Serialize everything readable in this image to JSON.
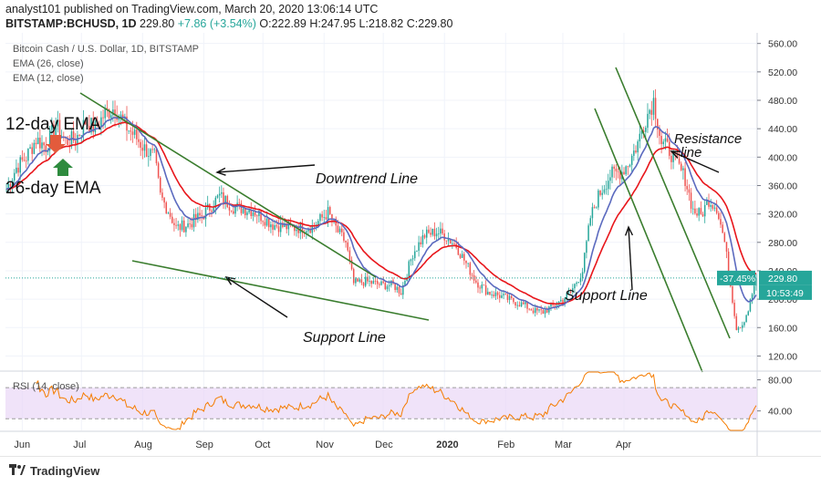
{
  "header": {
    "publish_line": "analyst101 published on TradingView.com, March 20, 2020 13:06:14 UTC",
    "symbol": "BITSTAMP:BCHUSD, 1D",
    "close_value": "229.80",
    "change": "+7.86 (+3.54%)",
    "open": "O:222.89",
    "high": "H:247.95",
    "low": "L:218.82",
    "close": "C:229.80"
  },
  "legend": {
    "title": "Bitcoin Cash / U.S. Dollar, 1D, BITSTAMP",
    "ema26": "EMA (26, close)",
    "ema12": "EMA (12, close)",
    "rsi": "RSI (14, close)"
  },
  "footer": {
    "brand": "TradingView"
  },
  "colors": {
    "up": "#26a69a",
    "down": "#ef5350",
    "ema12": "#5b6abf",
    "ema26": "#e8161b",
    "trend": "#3a7d2e",
    "rsi": "#f57c00",
    "rsi_band": "#e9d7f7",
    "arrow_down": "#e35b3c",
    "arrow_up": "#2e8b3e"
  },
  "chart_data": {
    "type": "candlestick",
    "price_axis": {
      "ticks": [
        "560.00",
        "520.00",
        "480.00",
        "440.00",
        "400.00",
        "360.00",
        "320.00",
        "280.00",
        "240.00",
        "200.00",
        "160.00",
        "120.00"
      ]
    },
    "last_price": {
      "change_label": "-37.45%",
      "price_label": "229.80",
      "countdown": "10:53:49"
    },
    "rsi_axis": {
      "ticks": [
        "80.00",
        "40.00"
      ]
    },
    "time_axis": [
      "Jun",
      "Jul",
      "Aug",
      "Sep",
      "Oct",
      "Nov",
      "Dec",
      "2020",
      "Feb",
      "Mar",
      "Apr"
    ],
    "annotations": {
      "ema12_label": "12-day EMA",
      "ema26_label": "26-day EMA",
      "downtrend": "Downtrend Line",
      "support1": "Support Line",
      "support2": "Support Line",
      "resistance1": "Resistance",
      "resistance2": "line"
    },
    "price_anchors": [
      [
        0,
        355
      ],
      [
        5,
        385
      ],
      [
        10,
        400
      ],
      [
        15,
        425
      ],
      [
        20,
        415
      ],
      [
        25,
        445
      ],
      [
        30,
        422
      ],
      [
        35,
        425
      ],
      [
        40,
        450
      ],
      [
        45,
        440
      ],
      [
        50,
        462
      ],
      [
        55,
        470
      ],
      [
        60,
        445
      ],
      [
        65,
        430
      ],
      [
        70,
        412
      ],
      [
        75,
        400
      ],
      [
        78,
        345
      ],
      [
        82,
        325
      ],
      [
        86,
        300
      ],
      [
        92,
        305
      ],
      [
        100,
        320
      ],
      [
        108,
        345
      ],
      [
        115,
        330
      ],
      [
        125,
        325
      ],
      [
        135,
        305
      ],
      [
        145,
        300
      ],
      [
        155,
        302
      ],
      [
        163,
        322
      ],
      [
        168,
        295
      ],
      [
        172,
        280
      ],
      [
        176,
        222
      ],
      [
        182,
        225
      ],
      [
        190,
        220
      ],
      [
        196,
        220
      ],
      [
        200,
        210
      ],
      [
        206,
        265
      ],
      [
        212,
        290
      ],
      [
        218,
        295
      ],
      [
        222,
        290
      ],
      [
        228,
        275
      ],
      [
        232,
        255
      ],
      [
        238,
        225
      ],
      [
        244,
        210
      ],
      [
        250,
        205
      ],
      [
        256,
        198
      ],
      [
        262,
        192
      ],
      [
        268,
        183
      ],
      [
        272,
        182
      ],
      [
        278,
        192
      ],
      [
        282,
        200
      ],
      [
        286,
        210
      ],
      [
        292,
        240
      ],
      [
        296,
        315
      ],
      [
        300,
        345
      ],
      [
        306,
        375
      ],
      [
        312,
        380
      ],
      [
        316,
        395
      ],
      [
        320,
        420
      ],
      [
        324,
        455
      ],
      [
        328,
        480
      ],
      [
        332,
        420
      ],
      [
        336,
        410
      ],
      [
        340,
        390
      ],
      [
        344,
        370
      ],
      [
        348,
        325
      ],
      [
        352,
        318
      ],
      [
        356,
        340
      ],
      [
        360,
        330
      ],
      [
        364,
        280
      ],
      [
        367,
        220
      ],
      [
        370,
        160
      ],
      [
        373,
        165
      ],
      [
        376,
        185
      ],
      [
        380,
        230
      ]
    ]
  }
}
